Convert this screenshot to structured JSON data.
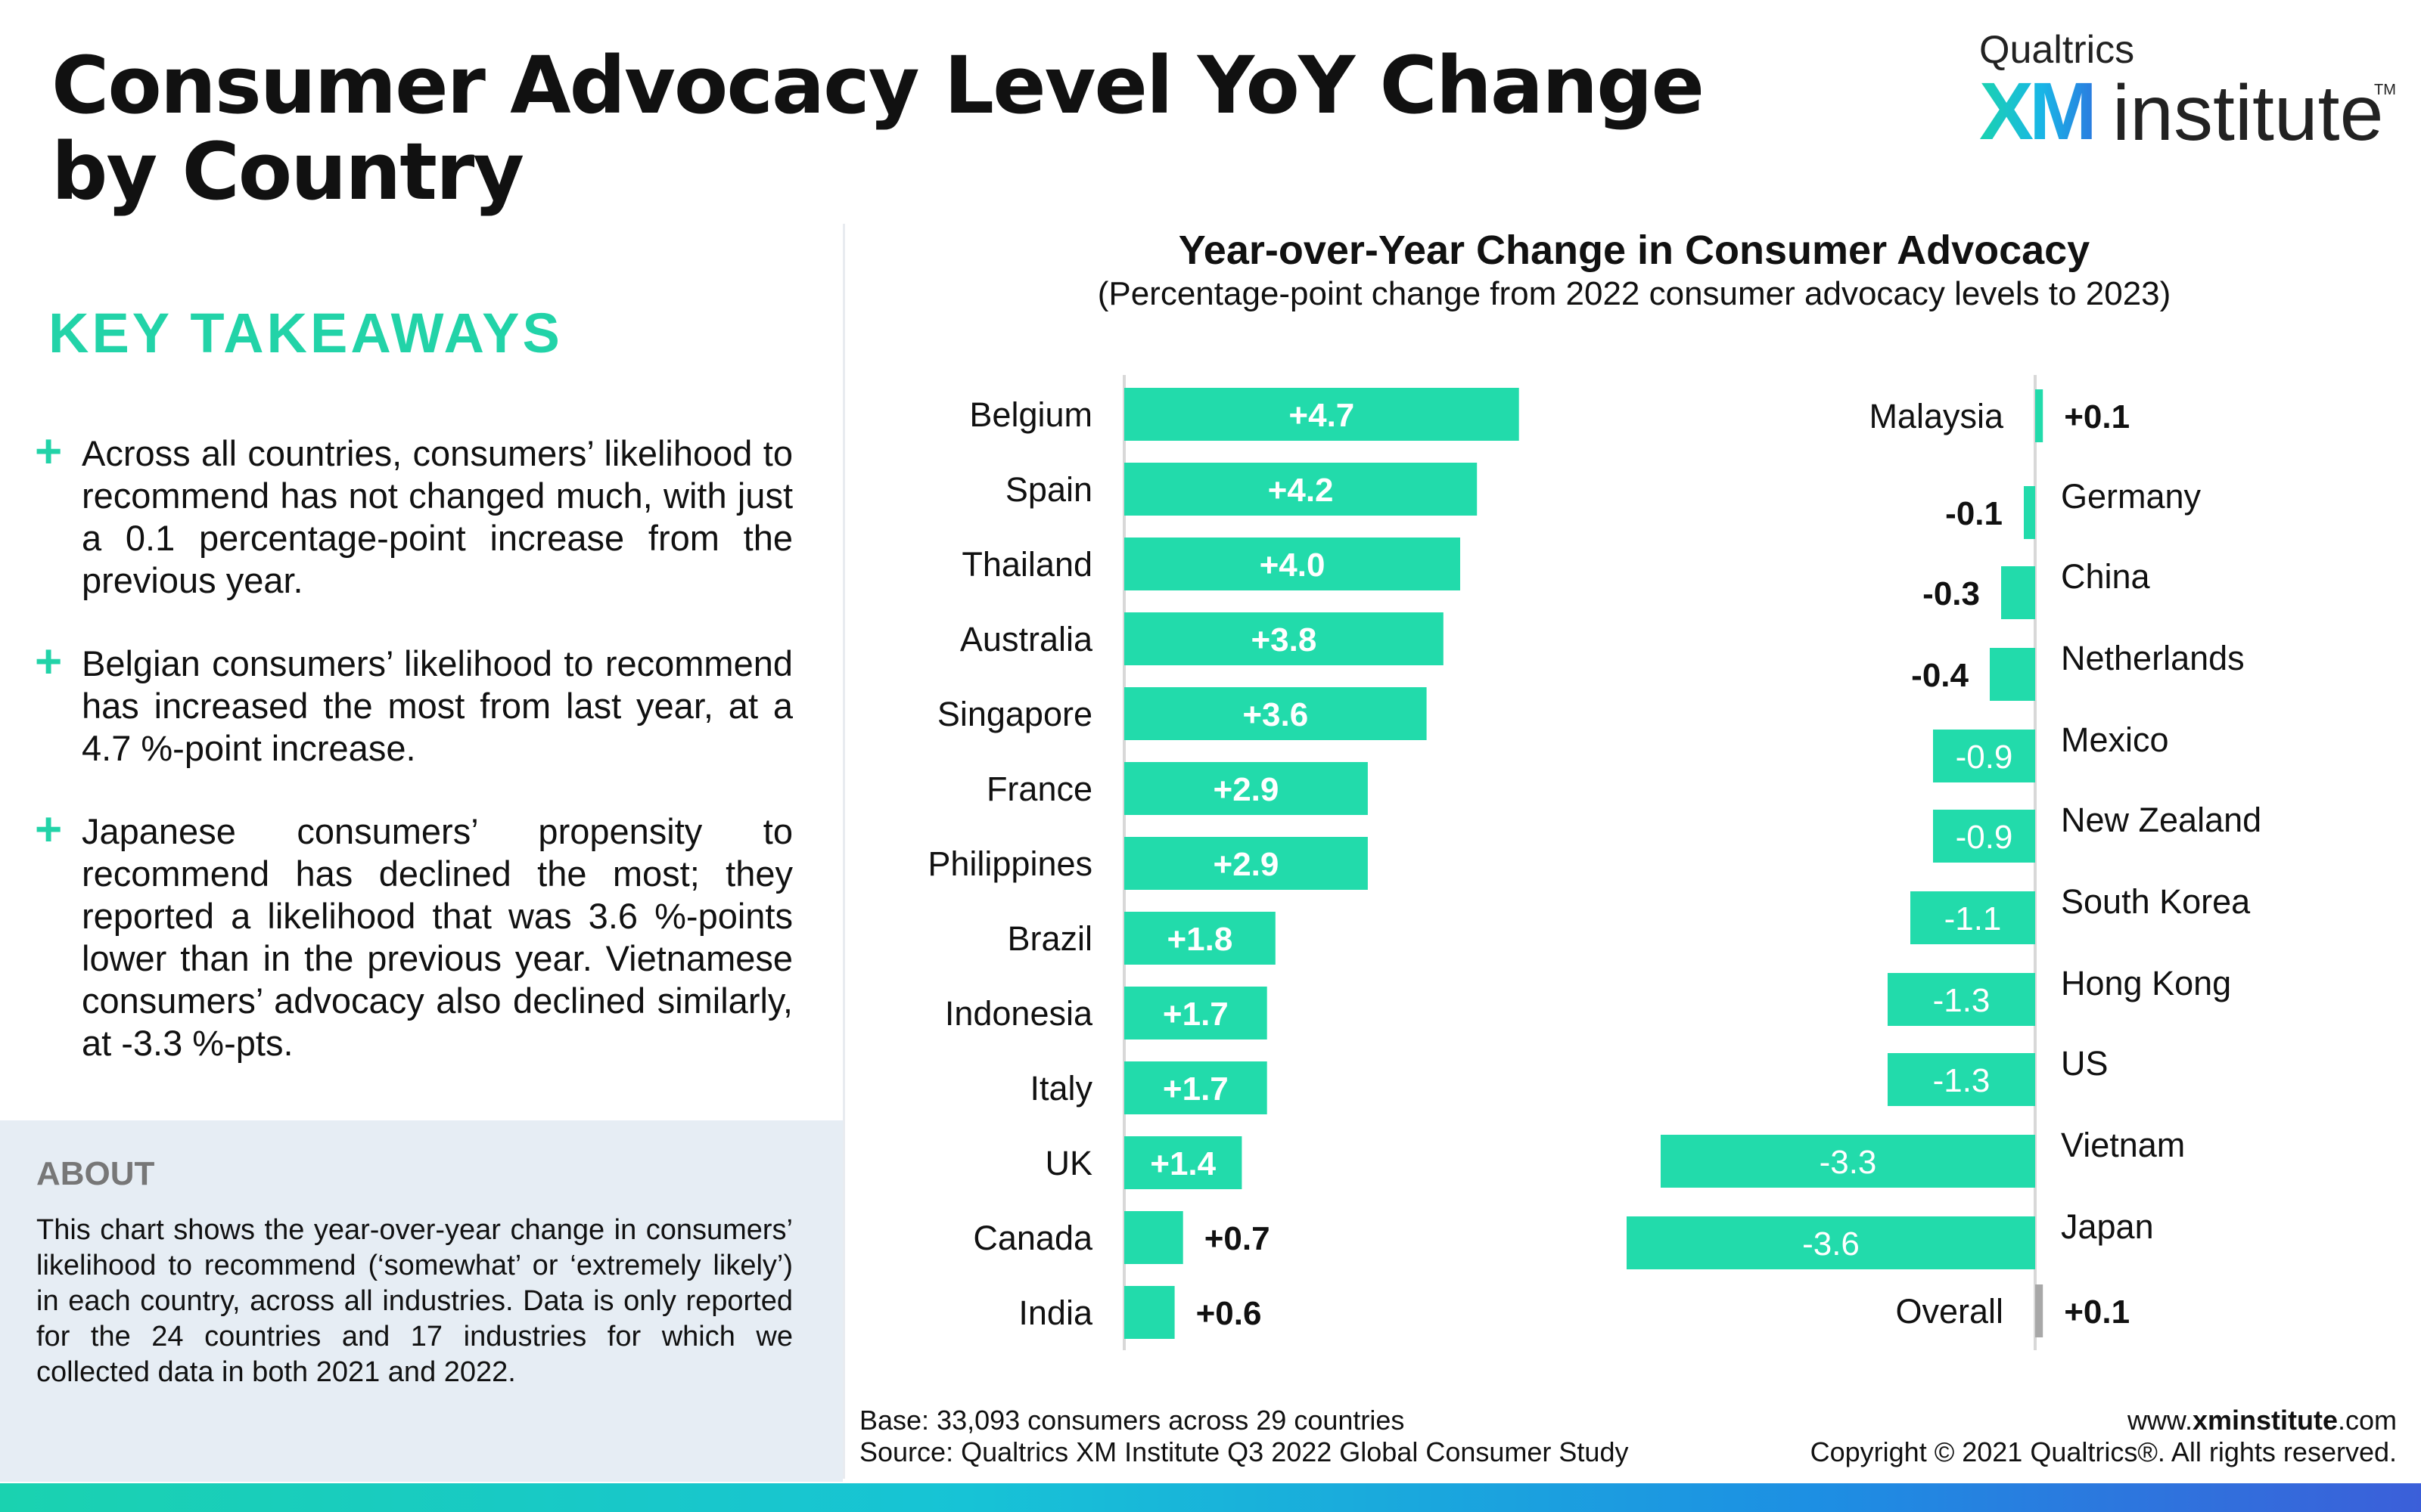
{
  "header": {
    "title_line1": "Consumer Advocacy Level YoY Change",
    "title_line2": "by Country"
  },
  "logo": {
    "company": "Qualtrics",
    "xm": "XM",
    "institute": "institute",
    "tm": "TM"
  },
  "takeaways": {
    "heading": "KEY TAKEAWAYS",
    "items": [
      "Across all countries, consumers’ likelihood to recommend has not changed much, with just a 0.1 percentage-point increase from the previous year.",
      "Belgian consumers’ likelihood to recommend has increased the most from last year, at a 4.7 %-point increase.",
      "Japanese consumers’ propensity to recommend has declined the most; they reported a likelihood that was 3.6 %-points lower than in the previous year. Vietnamese consumers’ advocacy also declined similarly, at -3.3 %-pts."
    ]
  },
  "about": {
    "heading": "ABOUT",
    "text": "This chart shows the year-over-year change in consumers’ likelihood to recommend (‘somewhat’ or ‘extremely likely’) in each country, across all industries. Data is only reported for the 24 countries and 17 industries for which we collected data in both 2021 and 2022."
  },
  "chart_data": {
    "type": "bar",
    "title": "Year-over-Year Change in Consumer Advocacy",
    "subtitle": "(Percentage-point change from 2022 consumer advocacy levels to 2023)",
    "unit": "percentage points",
    "bar_color": "#22dbab",
    "overall_color": "#a8a8a8",
    "positive": {
      "categories": [
        "Belgium",
        "Spain",
        "Thailand",
        "Australia",
        "Singapore",
        "France",
        "Philippines",
        "Brazil",
        "Indonesia",
        "Italy",
        "UK",
        "Canada",
        "India"
      ],
      "values": [
        4.7,
        4.2,
        4.0,
        3.8,
        3.6,
        2.9,
        2.9,
        1.8,
        1.7,
        1.7,
        1.4,
        0.7,
        0.6
      ],
      "labels": [
        "+4.7",
        "+4.2",
        "+4.0",
        "+3.8",
        "+3.6",
        "+2.9",
        "+2.9",
        "+1.8",
        "+1.7",
        "+1.7",
        "+1.4",
        "+0.7",
        "+0.6"
      ]
    },
    "mixed": {
      "categories": [
        "Malaysia",
        "Germany",
        "China",
        "Netherlands",
        "Mexico",
        "New Zealand",
        "South Korea",
        "Hong Kong",
        "US",
        "Vietnam",
        "Japan",
        "Overall"
      ],
      "values": [
        0.1,
        -0.1,
        -0.3,
        -0.4,
        -0.9,
        -0.9,
        -1.1,
        -1.3,
        -1.3,
        -3.3,
        -3.6,
        0.1
      ],
      "labels": [
        "+0.1",
        "-0.1",
        "-0.3",
        "-0.4",
        "-0.9",
        "-0.9",
        "-1.1",
        "-1.3",
        "-1.3",
        "-3.3",
        "-3.6",
        "+0.1"
      ]
    }
  },
  "footer": {
    "base": "Base: 33,093 consumers across 29 countries",
    "source": "Source: Qualtrics XM Institute Q3 2022 Global Consumer Study",
    "url_prefix": "www.",
    "url_bold": "xminstitute",
    "url_suffix": ".com",
    "copyright": "Copyright © 2021 Qualtrics®. All rights reserved."
  }
}
